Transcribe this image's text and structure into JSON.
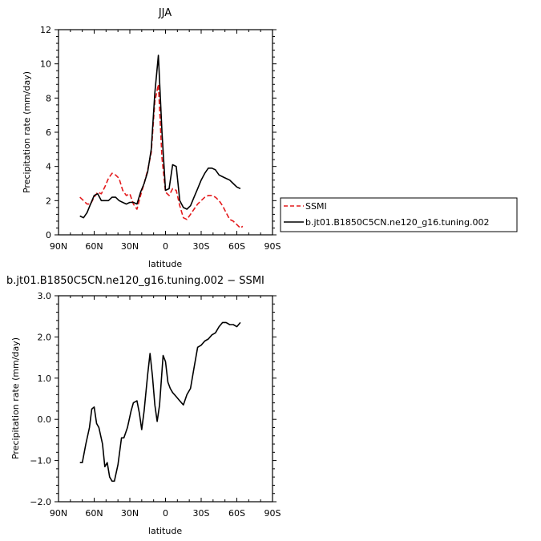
{
  "chart_data": [
    {
      "type": "line",
      "title": "JJA",
      "xlabel": "latitude",
      "ylabel": "Precipitation rate (mm/day)",
      "xlim": [
        90,
        -90
      ],
      "ylim": [
        0,
        12
      ],
      "x_ticks": [
        90,
        60,
        30,
        0,
        -30,
        -60,
        -90
      ],
      "x_tick_labels": [
        "90N",
        "60N",
        "30N",
        "0",
        "30S",
        "60S",
        "90S"
      ],
      "y_ticks": [
        0,
        2,
        4,
        6,
        8,
        10,
        12
      ],
      "y_tick_labels": [
        "0",
        "2",
        "4",
        "6",
        "8",
        "10",
        "12"
      ],
      "legend_position": "right",
      "series": [
        {
          "name": "SSMI",
          "color": "#e41a1c",
          "dash": "dashed",
          "x": [
            72,
            69,
            66,
            63,
            60,
            57,
            54,
            51,
            48,
            45,
            42,
            39,
            36,
            33,
            30,
            27,
            24,
            21,
            18,
            15,
            12,
            9,
            6,
            3,
            0,
            -3,
            -6,
            -9,
            -12,
            -15,
            -18,
            -21,
            -24,
            -27,
            -30,
            -33,
            -36,
            -39,
            -42,
            -45,
            -48,
            -51,
            -54,
            -57,
            -60,
            -63,
            -65
          ],
          "y": [
            2.2,
            2.0,
            1.8,
            1.8,
            2.2,
            2.5,
            2.4,
            2.8,
            3.3,
            3.6,
            3.5,
            3.3,
            2.6,
            2.3,
            2.4,
            1.8,
            1.5,
            2.3,
            3.0,
            3.8,
            4.8,
            7.8,
            8.8,
            4.5,
            2.5,
            2.3,
            2.7,
            2.6,
            1.7,
            1.0,
            0.9,
            1.2,
            1.5,
            1.8,
            2.0,
            2.2,
            2.3,
            2.3,
            2.2,
            2.0,
            1.7,
            1.3,
            0.9,
            0.8,
            0.6,
            0.4,
            0.5
          ]
        },
        {
          "name": "b.jt01.B1850C5CN.ne120_g16.tuning.002",
          "color": "#000000",
          "dash": "solid",
          "x": [
            72,
            69,
            66,
            63,
            60,
            57,
            54,
            51,
            48,
            45,
            42,
            39,
            36,
            33,
            30,
            27,
            24,
            21,
            18,
            15,
            12,
            9,
            6,
            3,
            0,
            -3,
            -6,
            -9,
            -12,
            -15,
            -18,
            -21,
            -24,
            -27,
            -30,
            -33,
            -36,
            -39,
            -42,
            -45,
            -48,
            -51,
            -54,
            -57,
            -60,
            -63
          ],
          "y": [
            1.1,
            1.0,
            1.3,
            1.8,
            2.3,
            2.4,
            2.0,
            2.0,
            2.0,
            2.2,
            2.2,
            2.0,
            1.9,
            1.8,
            1.9,
            1.9,
            1.8,
            2.5,
            3.0,
            3.7,
            5.0,
            8.3,
            10.5,
            6.0,
            2.6,
            2.7,
            4.1,
            4.0,
            2.0,
            1.6,
            1.5,
            1.7,
            2.2,
            2.7,
            3.2,
            3.6,
            3.9,
            3.9,
            3.8,
            3.5,
            3.4,
            3.3,
            3.2,
            3.0,
            2.8,
            2.7
          ]
        }
      ]
    },
    {
      "type": "line",
      "title": "b.jt01.B1850C5CN.ne120_g16.tuning.002 − SSMI",
      "xlabel": "latitude",
      "ylabel": "Precipitation rate (mm/day)",
      "xlim": [
        90,
        -90
      ],
      "ylim": [
        -2.0,
        3.0
      ],
      "x_ticks": [
        90,
        60,
        30,
        0,
        -30,
        -60,
        -90
      ],
      "x_tick_labels": [
        "90N",
        "60N",
        "30N",
        "0",
        "30S",
        "60S",
        "90S"
      ],
      "y_ticks": [
        -2.0,
        -1.0,
        0.0,
        1.0,
        2.0,
        3.0
      ],
      "y_tick_labels": [
        "−2.0",
        "−1.0",
        "0.0",
        "1.0",
        "2.0",
        "3.0"
      ],
      "series": [
        {
          "color": "#000000",
          "dash": "solid",
          "x": [
            72,
            70,
            67,
            64,
            62,
            60,
            58,
            56,
            53,
            51,
            49,
            47,
            45,
            43,
            40,
            37,
            35,
            32,
            29,
            27,
            24,
            22,
            20,
            18,
            15,
            13,
            11,
            9,
            7,
            5,
            2,
            0,
            -2,
            -4,
            -6,
            -9,
            -12,
            -15,
            -18,
            -21,
            -24,
            -27,
            -30,
            -33,
            -36,
            -39,
            -42,
            -45,
            -48,
            -51,
            -54,
            -57,
            -60,
            -63
          ],
          "y": [
            -1.05,
            -1.05,
            -0.6,
            -0.2,
            0.25,
            0.3,
            -0.1,
            -0.2,
            -0.6,
            -1.15,
            -1.05,
            -1.4,
            -1.5,
            -1.5,
            -1.1,
            -0.45,
            -0.45,
            -0.2,
            0.2,
            0.4,
            0.45,
            0.15,
            -0.25,
            0.2,
            1.1,
            1.6,
            1.05,
            0.35,
            -0.05,
            0.35,
            1.55,
            1.4,
            0.9,
            0.75,
            0.65,
            0.55,
            0.45,
            0.35,
            0.6,
            0.75,
            1.25,
            1.75,
            1.8,
            1.9,
            1.95,
            2.05,
            2.1,
            2.25,
            2.35,
            2.35,
            2.3,
            2.3,
            2.25,
            2.35
          ]
        }
      ]
    }
  ]
}
